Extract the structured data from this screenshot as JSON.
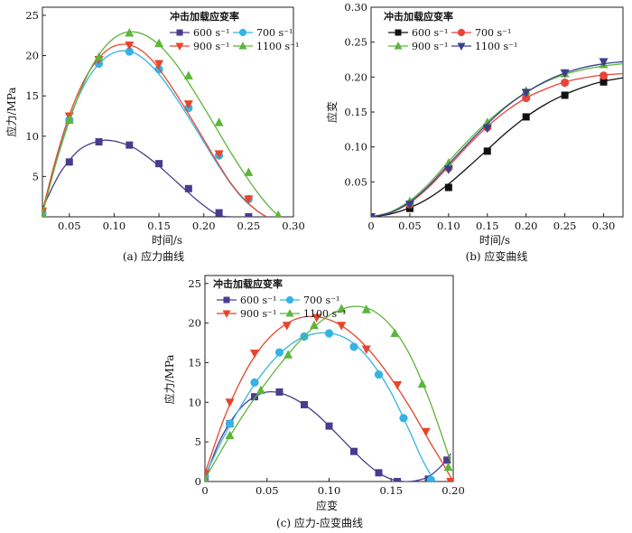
{
  "colors": {
    "s600": "#4b3b8f",
    "s700": "#35b3e4",
    "s900": "#e8452c",
    "s1100": "#5db53c",
    "s1100_b": "#3b3f8c",
    "b900": "#e8453a"
  },
  "chart_data": [
    {
      "type": "line",
      "caption": "(a) 应力曲线",
      "xlabel": "时间/s",
      "ylabel": "应力/MPa",
      "xlim": [
        0.02,
        0.3
      ],
      "ylim": [
        0,
        26
      ],
      "xticks": [
        0.05,
        0.1,
        0.15,
        0.2,
        0.25,
        0.3
      ],
      "xtick_labels": [
        "0.05",
        "0.10",
        "0.15",
        "0.20",
        "0.25",
        "0.30"
      ],
      "yticks": [
        5,
        10,
        15,
        20,
        25
      ],
      "ytick_labels": [
        "5",
        "10",
        "15",
        "20",
        "25"
      ],
      "legend_title": "冲击加载应变率",
      "legend_position": "top-right",
      "series": [
        {
          "name": "600 s⁻¹",
          "marker": "square",
          "color": "#4b3b8f",
          "x": [
            0.02,
            0.05,
            0.083,
            0.117,
            0.15,
            0.183,
            0.217,
            0.25
          ],
          "y": [
            0.5,
            6.8,
            9.3,
            8.9,
            6.6,
            3.5,
            0.5,
            0
          ],
          "curve_x": [
            0.02,
            0.03,
            0.04,
            0.05,
            0.06,
            0.07,
            0.08,
            0.09,
            0.1,
            0.11,
            0.12,
            0.13,
            0.14,
            0.15,
            0.16,
            0.17,
            0.18,
            0.19,
            0.2,
            0.21,
            0.22,
            0.23
          ],
          "curve_y": [
            1.0,
            3.4,
            5.5,
            7.0,
            8.2,
            8.9,
            9.3,
            9.5,
            9.4,
            9.1,
            8.7,
            8.0,
            7.2,
            6.3,
            5.3,
            4.3,
            3.3,
            2.3,
            1.4,
            0.6,
            0.1,
            0.0
          ]
        },
        {
          "name": "700 s⁻¹",
          "marker": "circle",
          "color": "#35b3e4",
          "x": [
            0.02,
            0.05,
            0.083,
            0.117,
            0.15,
            0.183,
            0.217,
            0.25
          ],
          "y": [
            0.5,
            12,
            19.0,
            20.5,
            18.3,
            13.5,
            7.6,
            2.2
          ],
          "curve_x": [
            0.02,
            0.035,
            0.05,
            0.065,
            0.08,
            0.095,
            0.11,
            0.125,
            0.14,
            0.155,
            0.17,
            0.185,
            0.2,
            0.215,
            0.23,
            0.245,
            0.26,
            0.27
          ],
          "curve_y": [
            0.5,
            6.8,
            12.1,
            16.0,
            18.6,
            20.1,
            20.6,
            20.2,
            18.9,
            17.0,
            14.6,
            12.0,
            9.3,
            6.6,
            4.1,
            2.1,
            0.7,
            0.0
          ]
        },
        {
          "name": "900 s⁻¹",
          "marker": "triangle-down",
          "color": "#e8452c",
          "x": [
            0.02,
            0.05,
            0.083,
            0.117,
            0.15,
            0.183,
            0.217,
            0.25
          ],
          "y": [
            0.7,
            12.5,
            19.5,
            21.3,
            19.0,
            14.0,
            7.8,
            2.2
          ],
          "curve_x": [
            0.02,
            0.035,
            0.05,
            0.065,
            0.08,
            0.095,
            0.11,
            0.125,
            0.14,
            0.155,
            0.17,
            0.185,
            0.2,
            0.215,
            0.23,
            0.245,
            0.26,
            0.27
          ],
          "curve_y": [
            0.7,
            7.2,
            12.6,
            16.6,
            19.3,
            20.9,
            21.4,
            21.0,
            19.7,
            17.6,
            15.1,
            12.4,
            9.6,
            6.8,
            4.2,
            2.2,
            0.7,
            0.0
          ]
        },
        {
          "name": "1100 s⁻¹",
          "marker": "triangle-up",
          "color": "#5db53c",
          "x": [
            0.02,
            0.05,
            0.083,
            0.117,
            0.15,
            0.183,
            0.217,
            0.25,
            0.283
          ],
          "y": [
            0.3,
            12,
            19.8,
            22.8,
            21.5,
            17.5,
            11.7,
            5.5,
            0.2
          ],
          "curve_x": [
            0.02,
            0.035,
            0.05,
            0.065,
            0.08,
            0.095,
            0.11,
            0.125,
            0.14,
            0.155,
            0.17,
            0.185,
            0.2,
            0.215,
            0.23,
            0.245,
            0.26,
            0.275,
            0.285
          ],
          "curve_y": [
            0.3,
            6.6,
            11.9,
            16.3,
            19.6,
            21.7,
            22.8,
            22.9,
            22.2,
            20.8,
            18.8,
            16.3,
            13.6,
            10.8,
            8.0,
            5.4,
            3.0,
            1.0,
            0.0
          ]
        }
      ]
    },
    {
      "type": "line",
      "caption": "(b) 应变曲线",
      "xlabel": "时间/s",
      "ylabel": "应变",
      "xlim": [
        0,
        0.325
      ],
      "ylim": [
        0,
        0.3
      ],
      "xticks": [
        0,
        0.05,
        0.1,
        0.15,
        0.2,
        0.25,
        0.3
      ],
      "xtick_labels": [
        "0",
        "0.05",
        "0.10",
        "0.15",
        "0.20",
        "0.25",
        "0.30"
      ],
      "yticks": [
        0.05,
        0.1,
        0.15,
        0.2,
        0.25,
        0.3
      ],
      "ytick_labels": [
        "0.05",
        "0.10",
        "0.15",
        "0.20",
        "0.25",
        "0.30"
      ],
      "legend_title": "冲击加载应变率",
      "legend_position": "top-left",
      "series": [
        {
          "name": "600 s⁻¹",
          "marker": "square",
          "color": "#111111",
          "x": [
            0,
            0.05,
            0.1,
            0.15,
            0.2,
            0.25,
            0.3
          ],
          "y": [
            0.0,
            0.012,
            0.042,
            0.094,
            0.143,
            0.174,
            0.193
          ],
          "curve_x": [
            0,
            0.025,
            0.05,
            0.075,
            0.1,
            0.125,
            0.15,
            0.175,
            0.2,
            0.225,
            0.25,
            0.275,
            0.3,
            0.325
          ],
          "curve_y": [
            0.0,
            0.004,
            0.013,
            0.027,
            0.047,
            0.071,
            0.096,
            0.121,
            0.143,
            0.161,
            0.175,
            0.186,
            0.194,
            0.199
          ]
        },
        {
          "name": "700 s⁻¹",
          "marker": "circle",
          "color": "#e8453a",
          "x": [
            0,
            0.05,
            0.1,
            0.15,
            0.2,
            0.25,
            0.3
          ],
          "y": [
            0.0,
            0.018,
            0.07,
            0.128,
            0.17,
            0.192,
            0.202
          ],
          "curve_x": [
            0,
            0.025,
            0.05,
            0.075,
            0.1,
            0.125,
            0.15,
            0.175,
            0.2,
            0.225,
            0.25,
            0.275,
            0.3,
            0.325
          ],
          "curve_y": [
            0.0,
            0.006,
            0.02,
            0.043,
            0.072,
            0.102,
            0.129,
            0.152,
            0.17,
            0.183,
            0.193,
            0.199,
            0.203,
            0.205
          ]
        },
        {
          "name": "900 s⁻¹",
          "marker": "triangle-up",
          "color": "#5db53c",
          "x": [
            0,
            0.05,
            0.1,
            0.15,
            0.2,
            0.25,
            0.3
          ],
          "y": [
            0.0,
            0.022,
            0.077,
            0.135,
            0.18,
            0.205,
            0.218
          ],
          "curve_x": [
            0,
            0.025,
            0.05,
            0.075,
            0.1,
            0.125,
            0.15,
            0.175,
            0.2,
            0.225,
            0.25,
            0.275,
            0.3,
            0.325
          ],
          "curve_y": [
            0.0,
            0.007,
            0.023,
            0.048,
            0.079,
            0.109,
            0.136,
            0.159,
            0.178,
            0.193,
            0.204,
            0.211,
            0.216,
            0.219
          ]
        },
        {
          "name": "1100 s⁻¹",
          "marker": "triangle-down",
          "color": "#3b3f8c",
          "x": [
            0,
            0.05,
            0.1,
            0.15,
            0.2,
            0.25,
            0.3
          ],
          "y": [
            0.0,
            0.018,
            0.068,
            0.127,
            0.178,
            0.206,
            0.222
          ],
          "curve_x": [
            0,
            0.025,
            0.05,
            0.075,
            0.1,
            0.125,
            0.15,
            0.175,
            0.2,
            0.225,
            0.25,
            0.275,
            0.3,
            0.325
          ],
          "curve_y": [
            0.0,
            0.006,
            0.021,
            0.045,
            0.075,
            0.105,
            0.133,
            0.158,
            0.178,
            0.194,
            0.206,
            0.214,
            0.219,
            0.222
          ]
        }
      ]
    },
    {
      "type": "line",
      "caption": "(c) 应力-应变曲线",
      "xlabel": "应变",
      "ylabel": "应力/MPa",
      "xlim": [
        0,
        0.2
      ],
      "ylim": [
        0,
        26
      ],
      "xticks": [
        0,
        0.05,
        0.1,
        0.15,
        0.2
      ],
      "xtick_labels": [
        "0",
        "0.05",
        "0.10",
        "0.15",
        "0.20"
      ],
      "yticks": [
        0,
        5,
        10,
        15,
        20,
        25
      ],
      "ytick_labels": [
        "0",
        "5",
        "10",
        "15",
        "20",
        "25"
      ],
      "legend_title": "冲击加载应变率",
      "legend_position": "top-left",
      "series": [
        {
          "name": "600 s⁻¹",
          "marker": "square",
          "color": "#4b3b8f",
          "x": [
            0.0,
            0.02,
            0.04,
            0.06,
            0.08,
            0.1,
            0.12,
            0.14,
            0.155,
            0.18,
            0.195
          ],
          "y": [
            0.3,
            7.3,
            10.7,
            11.3,
            9.7,
            7.0,
            3.8,
            1.1,
            0.0,
            0.3,
            2.7
          ],
          "curve_x": [
            0.0,
            0.01,
            0.02,
            0.03,
            0.04,
            0.05,
            0.06,
            0.07,
            0.08,
            0.09,
            0.1,
            0.11,
            0.12,
            0.13,
            0.14,
            0.15,
            0.16,
            0.17,
            0.18,
            0.19,
            0.198
          ],
          "curve_y": [
            0.3,
            4.5,
            7.4,
            9.5,
            10.7,
            11.3,
            11.2,
            10.6,
            9.7,
            8.5,
            7.0,
            5.4,
            3.8,
            2.3,
            1.1,
            0.3,
            0.0,
            0.1,
            0.6,
            1.9,
            3.5
          ]
        },
        {
          "name": "700 s⁻¹",
          "marker": "circle",
          "color": "#35b3e4",
          "x": [
            0.0,
            0.02,
            0.04,
            0.06,
            0.08,
            0.1,
            0.12,
            0.14,
            0.16,
            0.182
          ],
          "y": [
            0.7,
            7.3,
            12.5,
            16.3,
            18.3,
            18.7,
            17.0,
            13.5,
            8.0,
            0.2
          ],
          "curve_x": [
            0.0,
            0.015,
            0.03,
            0.045,
            0.06,
            0.075,
            0.09,
            0.105,
            0.12,
            0.135,
            0.15,
            0.165,
            0.175,
            0.185
          ],
          "curve_y": [
            0.7,
            5.6,
            9.8,
            13.4,
            16.1,
            17.9,
            18.7,
            18.6,
            17.4,
            14.9,
            11.2,
            6.3,
            2.8,
            0.0
          ]
        },
        {
          "name": "900 s⁻¹",
          "marker": "triangle-down",
          "color": "#e8452c",
          "x": [
            0.0,
            0.02,
            0.04,
            0.066,
            0.09,
            0.11,
            0.13,
            0.155,
            0.178,
            0.198
          ],
          "y": [
            1.0,
            10.0,
            16.2,
            19.7,
            20.7,
            19.7,
            16.7,
            12.2,
            6.3,
            0.0
          ],
          "curve_x": [
            0.0,
            0.015,
            0.03,
            0.045,
            0.06,
            0.075,
            0.09,
            0.105,
            0.12,
            0.135,
            0.15,
            0.165,
            0.18,
            0.19,
            0.2
          ],
          "curve_y": [
            1.0,
            7.8,
            13.1,
            16.9,
            19.3,
            20.6,
            20.8,
            20.1,
            18.5,
            16.1,
            13.0,
            9.4,
            5.3,
            2.7,
            0.0
          ]
        },
        {
          "name": "1100 s⁻¹",
          "marker": "triangle-up",
          "color": "#5db53c",
          "x": [
            0.0,
            0.02,
            0.045,
            0.067,
            0.088,
            0.11,
            0.13,
            0.153,
            0.175,
            0.196
          ],
          "y": [
            0.3,
            5.8,
            11.5,
            16.0,
            19.7,
            21.8,
            21.7,
            18.7,
            12.3,
            1.8
          ],
          "curve_x": [
            0.0,
            0.015,
            0.03,
            0.045,
            0.06,
            0.075,
            0.09,
            0.105,
            0.12,
            0.135,
            0.15,
            0.165,
            0.18,
            0.19,
            0.198
          ],
          "curve_y": [
            0.3,
            4.4,
            8.2,
            11.6,
            14.7,
            17.5,
            19.8,
            21.4,
            22.1,
            21.6,
            19.6,
            16.0,
            10.6,
            6.2,
            2.4
          ]
        }
      ]
    }
  ]
}
